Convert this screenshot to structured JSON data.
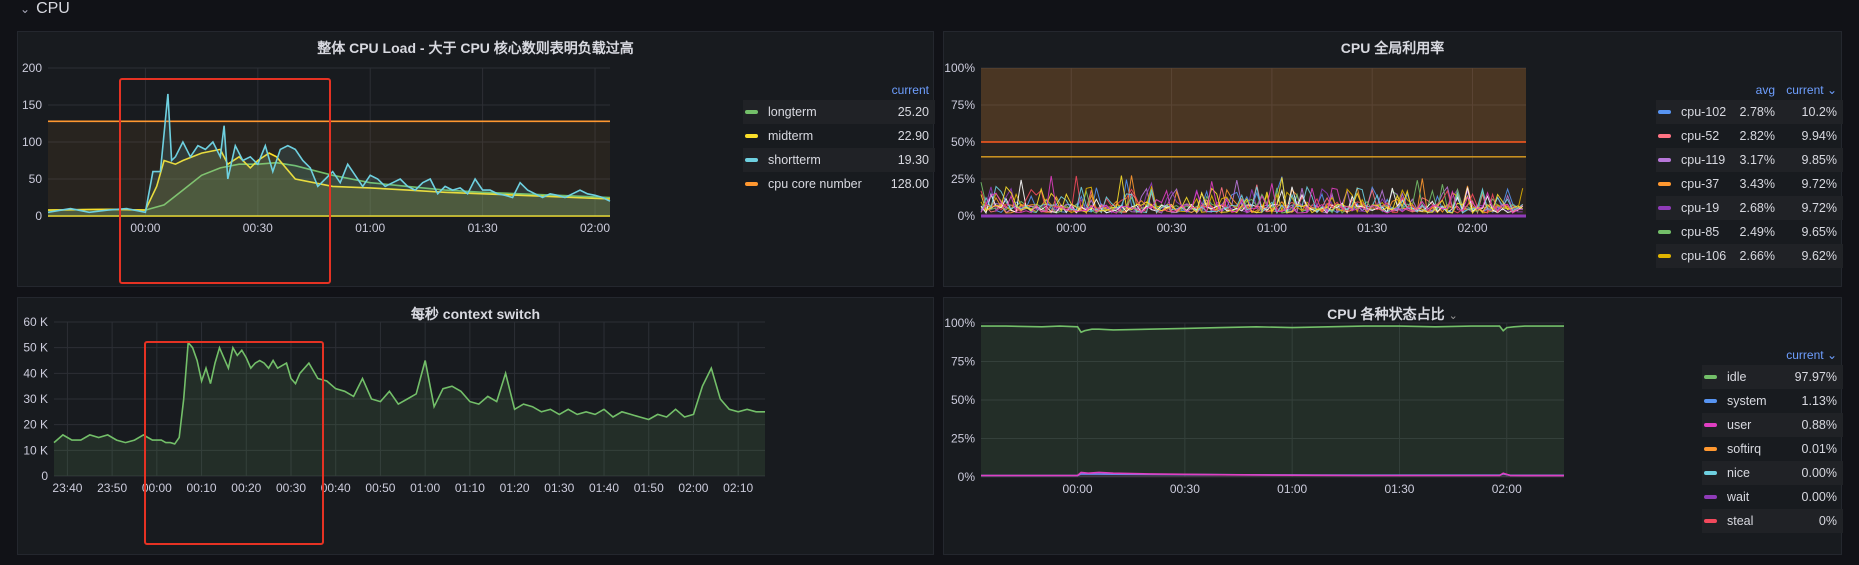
{
  "row": {
    "title": "CPU"
  },
  "colors": {
    "green": "#73bf69",
    "yellow": "#fade2a",
    "cyan": "#8ab8ff",
    "lightcyan": "#6ed0e0",
    "orange": "#ff9830",
    "blue": "#5794f2",
    "pink": "#ff7383",
    "purple": "#b877d9",
    "violet": "#8f3bb8",
    "magenta": "#e03ec2",
    "red": "#f2495c",
    "gold": "#e0b400"
  },
  "panels": {
    "load": {
      "title": "整体 CPU Load - 大于 CPU 核心数则表明负载过高",
      "legend_header": "current",
      "series": [
        {
          "name": "longterm",
          "current": "25.20",
          "color": "#73bf69"
        },
        {
          "name": "midterm",
          "current": "22.90",
          "color": "#fade2a"
        },
        {
          "name": "shortterm",
          "current": "19.30",
          "color": "#6ed0e0"
        },
        {
          "name": "cpu core number",
          "current": "128.00",
          "color": "#ff9830"
        }
      ]
    },
    "cpu_util": {
      "title": "CPU 全局利用率",
      "legend_header_avg": "avg",
      "legend_header_current": "current",
      "series": [
        {
          "name": "cpu-102",
          "avg": "2.78%",
          "current": "10.2%",
          "color": "#5794f2"
        },
        {
          "name": "cpu-52",
          "avg": "2.82%",
          "current": "9.94%",
          "color": "#ff7383"
        },
        {
          "name": "cpu-119",
          "avg": "3.17%",
          "current": "9.85%",
          "color": "#b877d9"
        },
        {
          "name": "cpu-37",
          "avg": "3.43%",
          "current": "9.72%",
          "color": "#ff9830"
        },
        {
          "name": "cpu-19",
          "avg": "2.68%",
          "current": "9.72%",
          "color": "#8f3bb8"
        },
        {
          "name": "cpu-85",
          "avg": "2.49%",
          "current": "9.65%",
          "color": "#73bf69"
        },
        {
          "name": "cpu-106",
          "avg": "2.66%",
          "current": "9.62%",
          "color": "#e0b400"
        }
      ]
    },
    "ctx": {
      "title": "每秒 context switch"
    },
    "states": {
      "title": "CPU 各种状态占比",
      "legend_header": "current",
      "series": [
        {
          "name": "idle",
          "current": "97.97%",
          "color": "#73bf69"
        },
        {
          "name": "system",
          "current": "1.13%",
          "color": "#5794f2"
        },
        {
          "name": "user",
          "current": "0.88%",
          "color": "#e03ec2"
        },
        {
          "name": "softirq",
          "current": "0.01%",
          "color": "#ff9830"
        },
        {
          "name": "nice",
          "current": "0.00%",
          "color": "#6ed0e0"
        },
        {
          "name": "wait",
          "current": "0.00%",
          "color": "#8f3bb8"
        },
        {
          "name": "steal",
          "current": "0%",
          "color": "#f2495c"
        }
      ]
    }
  },
  "chart_data": [
    {
      "type": "line",
      "title": "整体 CPU Load - 大于 CPU 核心数则表明负载过高",
      "x_ticks": [
        "00:00",
        "00:30",
        "01:00",
        "01:30",
        "02:00"
      ],
      "y_ticks": [
        "0",
        "50",
        "100",
        "150",
        "200"
      ],
      "ylim": [
        0,
        200
      ],
      "x_range_minutes": [
        -26,
        124
      ],
      "x_tick_minutes": [
        0,
        30,
        60,
        90,
        120
      ],
      "series": [
        {
          "name": "cpu core number",
          "x": [
            -26,
            124
          ],
          "values": [
            128,
            128
          ]
        },
        {
          "name": "longterm",
          "x": [
            -26,
            -10,
            0,
            5,
            10,
            15,
            20,
            25,
            30,
            35,
            40,
            50,
            60,
            70,
            80,
            90,
            100,
            110,
            124
          ],
          "values": [
            8,
            9,
            8,
            15,
            35,
            55,
            65,
            70,
            70,
            72,
            68,
            55,
            45,
            40,
            35,
            32,
            30,
            28,
            25
          ]
        },
        {
          "name": "midterm",
          "x": [
            -26,
            -10,
            0,
            3,
            5,
            8,
            10,
            15,
            20,
            22,
            25,
            28,
            30,
            33,
            35,
            40,
            45,
            50,
            60,
            70,
            80,
            90,
            100,
            110,
            124
          ],
          "values": [
            8,
            9,
            8,
            40,
            75,
            70,
            75,
            85,
            90,
            70,
            80,
            65,
            75,
            85,
            80,
            50,
            45,
            40,
            38,
            35,
            32,
            30,
            28,
            26,
            23
          ]
        },
        {
          "name": "shortterm",
          "x": [
            -26,
            -20,
            -15,
            -10,
            -5,
            0,
            2,
            4,
            6,
            7,
            8,
            10,
            12,
            14,
            16,
            18,
            20,
            21,
            22,
            24,
            26,
            28,
            30,
            32,
            34,
            36,
            38,
            40,
            42,
            44,
            46,
            48,
            50,
            52,
            54,
            56,
            58,
            60,
            62,
            64,
            66,
            68,
            70,
            72,
            74,
            76,
            78,
            80,
            82,
            84,
            86,
            88,
            90,
            92,
            94,
            96,
            98,
            100,
            102,
            104,
            106,
            108,
            110,
            112,
            114,
            116,
            118,
            120,
            122,
            124
          ],
          "values": [
            5,
            10,
            5,
            8,
            10,
            5,
            60,
            60,
            165,
            75,
            80,
            100,
            80,
            95,
            90,
            100,
            80,
            122,
            50,
            95,
            75,
            80,
            70,
            95,
            60,
            90,
            95,
            90,
            75,
            65,
            40,
            50,
            60,
            45,
            70,
            55,
            40,
            55,
            50,
            40,
            45,
            50,
            40,
            35,
            45,
            50,
            30,
            40,
            35,
            38,
            30,
            50,
            35,
            35,
            30,
            28,
            25,
            45,
            35,
            30,
            25,
            30,
            28,
            25,
            30,
            35,
            30,
            28,
            25,
            20
          ]
        }
      ]
    },
    {
      "type": "line",
      "title": "CPU 全局利用率",
      "x_ticks": [
        "00:00",
        "00:30",
        "01:00",
        "01:30",
        "02:00"
      ],
      "y_ticks": [
        "0%",
        "25%",
        "50%",
        "75%",
        "100%"
      ],
      "ylim": [
        0,
        100
      ],
      "x_range_minutes": [
        -27,
        136
      ],
      "x_tick_minutes": [
        0,
        30,
        60,
        90,
        120
      ],
      "thresholds": [
        50,
        40
      ],
      "series": [
        {
          "name": "cpu-102",
          "values": [
            2.78
          ]
        },
        {
          "name": "cpu-52",
          "values": [
            2.82
          ]
        },
        {
          "name": "cpu-119",
          "values": [
            3.17
          ]
        },
        {
          "name": "cpu-37",
          "values": [
            3.43
          ]
        },
        {
          "name": "cpu-19",
          "values": [
            2.68
          ]
        },
        {
          "name": "cpu-85",
          "values": [
            2.49
          ]
        },
        {
          "name": "cpu-106",
          "values": [
            2.66
          ]
        }
      ]
    },
    {
      "type": "line",
      "title": "每秒 context switch",
      "x_ticks": [
        "23:40",
        "23:50",
        "00:00",
        "00:10",
        "00:20",
        "00:30",
        "00:40",
        "00:50",
        "01:00",
        "01:10",
        "01:20",
        "01:30",
        "01:40",
        "01:50",
        "02:00",
        "02:10"
      ],
      "x_tick_minutes": [
        -20,
        -10,
        0,
        10,
        20,
        30,
        40,
        50,
        60,
        70,
        80,
        90,
        100,
        110,
        120,
        130
      ],
      "x_range_minutes": [
        -23,
        136
      ],
      "y_ticks": [
        "0",
        "10 K",
        "20 K",
        "30 K",
        "40 K",
        "50 K",
        "60 K"
      ],
      "ylim": [
        0,
        60000
      ],
      "series": [
        {
          "name": "context switch",
          "x": [
            -23,
            -21,
            -19,
            -17,
            -15,
            -13,
            -11,
            -9,
            -7,
            -5,
            -3,
            -1,
            1,
            2,
            3,
            4,
            5,
            6,
            7,
            8,
            9,
            10,
            11,
            12,
            13,
            14,
            15,
            16,
            17,
            18,
            19,
            20,
            21,
            22,
            23,
            24,
            25,
            26,
            27,
            28,
            29,
            30,
            31,
            32,
            34,
            36,
            38,
            40,
            42,
            44,
            46,
            48,
            50,
            52,
            54,
            56,
            58,
            60,
            62,
            64,
            66,
            68,
            70,
            72,
            74,
            76,
            78,
            80,
            82,
            84,
            86,
            88,
            90,
            92,
            94,
            96,
            98,
            100,
            102,
            104,
            106,
            108,
            110,
            112,
            114,
            116,
            118,
            120,
            122,
            124,
            126,
            128,
            130,
            132,
            134,
            136
          ],
          "values": [
            13000,
            16000,
            14000,
            14000,
            16000,
            15000,
            16000,
            14000,
            13000,
            14000,
            16000,
            14000,
            14000,
            13000,
            13000,
            12500,
            15000,
            30000,
            52000,
            50000,
            45000,
            37000,
            42000,
            36000,
            44000,
            50000,
            46000,
            42000,
            50000,
            47000,
            49000,
            46000,
            42000,
            44000,
            45000,
            44000,
            42000,
            45000,
            42000,
            43000,
            44000,
            38000,
            36000,
            40000,
            44000,
            38000,
            37000,
            34000,
            33000,
            31000,
            38000,
            30000,
            29000,
            33000,
            28000,
            30000,
            32000,
            45000,
            27000,
            34000,
            35000,
            33000,
            29000,
            28000,
            31000,
            29000,
            40000,
            26000,
            28000,
            27000,
            25000,
            26000,
            24000,
            26000,
            24000,
            25000,
            24000,
            26000,
            23000,
            25000,
            24000,
            23000,
            22000,
            24000,
            23000,
            26000,
            23000,
            24000,
            35000,
            42000,
            30000,
            26000,
            25000,
            26000,
            25000,
            25000
          ]
        }
      ]
    },
    {
      "type": "line",
      "title": "CPU 各种状态占比",
      "x_ticks": [
        "00:00",
        "00:30",
        "01:00",
        "01:30",
        "02:00"
      ],
      "x_tick_minutes": [
        0,
        30,
        60,
        90,
        120
      ],
      "x_range_minutes": [
        -27,
        136
      ],
      "y_ticks": [
        "0%",
        "25%",
        "50%",
        "75%",
        "100%"
      ],
      "ylim": [
        0,
        100
      ],
      "series": [
        {
          "name": "idle",
          "x": [
            -27,
            -20,
            -10,
            -5,
            0,
            1,
            2,
            4,
            6,
            10,
            20,
            30,
            40,
            50,
            60,
            70,
            80,
            90,
            100,
            110,
            118,
            119,
            120,
            122,
            125,
            130,
            136
          ],
          "values": [
            98,
            98,
            97.5,
            98,
            97.5,
            94,
            95,
            96,
            96,
            95.5,
            96,
            96.5,
            97,
            97.5,
            97,
            97.5,
            98,
            98,
            97.5,
            98,
            98,
            95,
            97,
            97.5,
            98,
            98,
            98
          ]
        },
        {
          "name": "user",
          "x": [
            -27,
            -10,
            0,
            1,
            3,
            6,
            10,
            20,
            40,
            60,
            80,
            100,
            118,
            119,
            121,
            136
          ],
          "values": [
            1,
            1,
            1,
            3,
            2.5,
            3,
            2.5,
            2,
            1.5,
            1.2,
            1,
            1,
            1,
            2.5,
            1,
            0.9
          ]
        },
        {
          "name": "system",
          "x": [
            -27,
            0,
            1,
            10,
            40,
            80,
            118,
            119,
            121,
            136
          ],
          "values": [
            1,
            1,
            2,
            1.8,
            1.5,
            1.2,
            1.2,
            2,
            1.1,
            1.1
          ]
        }
      ]
    }
  ]
}
